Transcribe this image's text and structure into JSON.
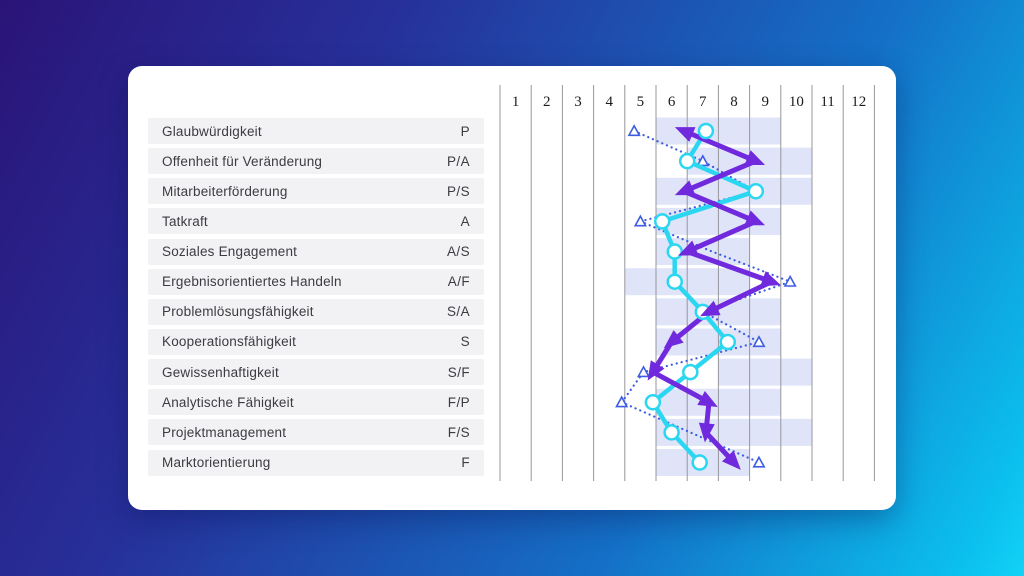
{
  "chart_data": {
    "type": "line",
    "subtype": "competency-profile",
    "title": "",
    "xlabel": "",
    "ylabel": "",
    "xlim": [
      1,
      12
    ],
    "grid": "vertical",
    "legend": "none",
    "x_ticks": [
      "1",
      "2",
      "3",
      "4",
      "5",
      "6",
      "7",
      "8",
      "9",
      "10",
      "11",
      "12"
    ],
    "categories": [
      "Glaubwürdigkeit",
      "Offenheit für Veränderung",
      "Mitarbeiterförderung",
      "Tatkraft",
      "Soziales Engagement",
      "Ergebnisorientiertes Handeln",
      "Problemlösungsfähigkeit",
      "Kooperationsfähigkeit",
      "Gewissenhaftigkeit",
      "Analytische Fähigkeit",
      "Projektmanagement",
      "Marktorientierung"
    ],
    "category_codes": [
      "P",
      "P/A",
      "P/S",
      "A",
      "A/S",
      "A/F",
      "S/A",
      "S",
      "S/F",
      "F/P",
      "F/S",
      "F"
    ],
    "series": [
      {
        "name": "profile-blue-dotted-triangles",
        "color": "#3f5de3",
        "line": "dotted",
        "marker": "open-triangle",
        "values": [
          4.8,
          7.0,
          8.7,
          5.0,
          7.3,
          9.8,
          7.0,
          8.8,
          5.1,
          4.4,
          6.6,
          8.8
        ],
        "marker_visible": [
          1,
          1,
          0,
          1,
          0,
          1,
          0,
          1,
          1,
          1,
          0,
          1
        ]
      },
      {
        "name": "profile-cyan-circles",
        "color": "#2bd7f0",
        "line": "solid",
        "marker": "open-circle",
        "values": [
          7.1,
          6.5,
          8.7,
          5.7,
          6.1,
          6.1,
          7.0,
          7.8,
          6.6,
          5.4,
          6.0,
          6.9
        ]
      },
      {
        "name": "profile-purple-arrows",
        "color": "#7129dd",
        "line": "solid",
        "marker": "arrow",
        "values": [
          6.4,
          8.7,
          6.4,
          8.7,
          6.5,
          9.2,
          7.2,
          6.0,
          5.4,
          7.2,
          7.1,
          8.0
        ]
      }
    ],
    "bands": {
      "color": "#dfe4f8",
      "ranges": [
        [
          6,
          9
        ],
        [
          7,
          10
        ],
        [
          6,
          10
        ],
        [
          6,
          9
        ],
        [
          6,
          8
        ],
        [
          5,
          8
        ],
        [
          6,
          9
        ],
        [
          6,
          9
        ],
        [
          8,
          10
        ],
        [
          6,
          9
        ],
        [
          6,
          10
        ],
        [
          6,
          8
        ]
      ]
    }
  },
  "colors": {
    "background_start": "#2a1478",
    "background_end": "#12d3f6",
    "card": "#ffffff",
    "row_background": "#f2f2f4",
    "row_text": "#3b3b42",
    "gridline": "#97979c",
    "tick_text": "#1b1b1b"
  }
}
